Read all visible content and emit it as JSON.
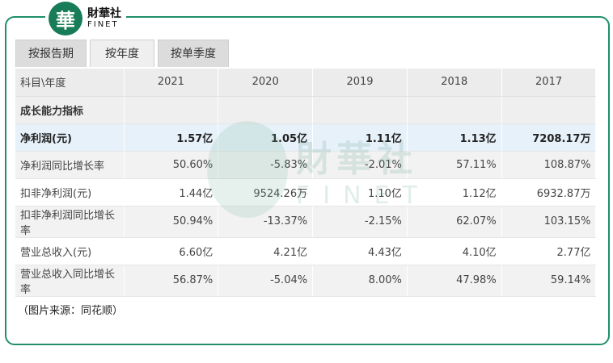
{
  "brand": {
    "logo_char": "華",
    "name_cn": "財華社",
    "name_en": "FINET"
  },
  "tabs": [
    {
      "label": "按报告期",
      "active": false
    },
    {
      "label": "按年度",
      "active": true
    },
    {
      "label": "按单季度",
      "active": false
    }
  ],
  "table": {
    "header": [
      "科目\\年度",
      "2021",
      "2020",
      "2019",
      "2018",
      "2017"
    ],
    "section_label": "成长能力指标",
    "rows": [
      {
        "label": "净利润(元)",
        "values": [
          "1.57亿",
          "1.05亿",
          "1.11亿",
          "1.13亿",
          "7208.17万"
        ]
      },
      {
        "label": "净利润同比增长率",
        "values": [
          "50.60%",
          "-5.83%",
          "-2.01%",
          "57.11%",
          "108.87%"
        ]
      },
      {
        "label": "扣非净利润(元)",
        "values": [
          "1.44亿",
          "9524.26万",
          "1.10亿",
          "1.12亿",
          "6932.87万"
        ]
      },
      {
        "label": "扣非净利润同比增长率",
        "values": [
          "50.94%",
          "-13.37%",
          "-2.15%",
          "62.07%",
          "103.15%"
        ]
      },
      {
        "label": "营业总收入(元)",
        "values": [
          "6.60亿",
          "4.21亿",
          "4.43亿",
          "4.10亿",
          "2.77亿"
        ]
      },
      {
        "label": "营业总收入同比增长率",
        "values": [
          "56.87%",
          "-5.04%",
          "8.00%",
          "47.98%",
          "59.14%"
        ]
      }
    ]
  },
  "watermark": {
    "cn": "財華社",
    "en": "FINET"
  },
  "source_note": "（图片来源：同花顺）"
}
